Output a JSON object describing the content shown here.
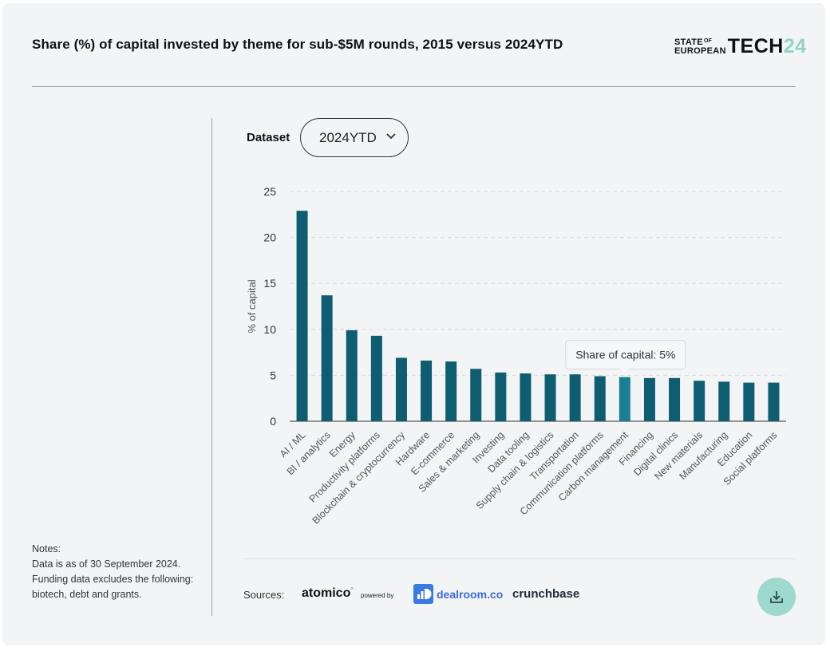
{
  "header": {
    "title": "Share (%) of capital invested by theme for sub-$5M rounds, 2015 versus 2024YTD",
    "logo": {
      "line1": "STATE",
      "of": "OF",
      "line2": "EUROPEAN",
      "tech": "TECH",
      "year": "24"
    }
  },
  "controls": {
    "dataset_label": "Dataset",
    "dataset_value": "2024YTD"
  },
  "notes": {
    "heading": "Notes:",
    "text": "Data is as of 30 September 2024. Funding data excludes the following: biotech, debt and grants."
  },
  "tooltip": {
    "label": "Share of capital: 5%"
  },
  "sources": {
    "label": "Sources:",
    "atomico": "atomico",
    "powered_by": "powered by",
    "dealroom": "dealroom.co",
    "crunchbase": "crunchbase"
  },
  "colors": {
    "bar": "#0e5d71",
    "bar_highlight": "#1a7f96",
    "accent": "#8fd5c6"
  },
  "chart_data": {
    "type": "bar",
    "title": "Share (%) of capital invested by theme for sub-$5M rounds, 2015 versus 2024YTD",
    "xlabel": "",
    "ylabel": "% of capital",
    "ylim": [
      0,
      25
    ],
    "yticks": [
      0,
      5,
      10,
      15,
      20,
      25
    ],
    "grid": true,
    "highlighted_category": "Carbon management",
    "categories": [
      "AI / ML",
      "BI / analytics",
      "Energy",
      "Productivity platforms",
      "Blockchain & cryptocurrency",
      "Hardware",
      "E-commerce",
      "Sales & marketing",
      "Investing",
      "Data tooling",
      "Supply chain & logistics",
      "Transportation",
      "Communication platforms",
      "Carbon management",
      "Financing",
      "Digital clinics",
      "New materials",
      "Manufacturing",
      "Education",
      "Social platforms"
    ],
    "values": [
      22.9,
      13.7,
      9.9,
      9.3,
      6.9,
      6.6,
      6.5,
      5.7,
      5.3,
      5.2,
      5.1,
      5.1,
      4.9,
      4.8,
      4.7,
      4.7,
      4.4,
      4.3,
      4.2,
      4.2
    ]
  }
}
